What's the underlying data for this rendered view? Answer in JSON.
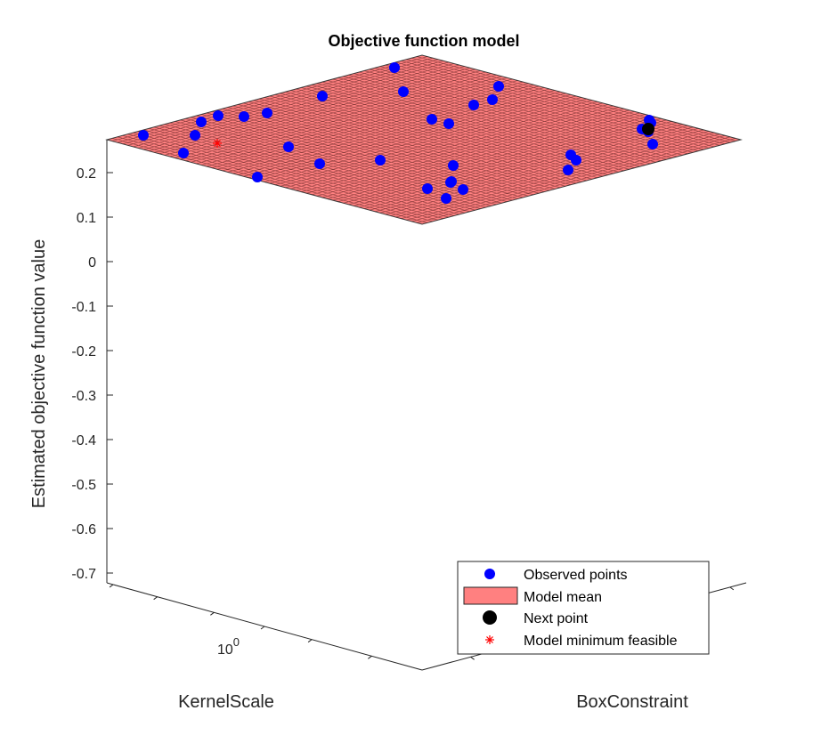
{
  "chart_data": {
    "type": "surface3d",
    "title": "Objective function model",
    "xlabel": "KernelScale",
    "ylabel": "BoxConstraint",
    "zlabel": "Estimated objective function value",
    "z_ticks": [
      "0.2",
      "0.1",
      "0",
      "-0.1",
      "-0.2",
      "-0.3",
      "-0.4",
      "-0.5",
      "-0.6",
      "-0.7"
    ],
    "z_tick_values": [
      0.2,
      0.1,
      0,
      -0.1,
      -0.2,
      -0.3,
      -0.4,
      -0.5,
      -0.6,
      -0.7
    ],
    "zlim": [
      -0.73,
      0.27
    ],
    "x_scale": "log",
    "x_ticks": [
      "10^0"
    ],
    "y_scale": "log",
    "model_mean_z": 0.27,
    "observed_points_count": 33,
    "colors": {
      "observed": "#0000ff",
      "surface_fill": "#ff8080",
      "surface_grid": "#5a1e1e",
      "next_point": "#000000",
      "model_min": "#ff0000"
    },
    "legend": {
      "placement": "bottom-right",
      "entries": [
        {
          "label": "Observed points",
          "marker": "blue-circle"
        },
        {
          "label": "Model mean",
          "marker": "salmon-patch"
        },
        {
          "label": "Next point",
          "marker": "black-circle"
        },
        {
          "label": "Model minimum feasible",
          "marker": "red-asterisk"
        }
      ]
    }
  }
}
